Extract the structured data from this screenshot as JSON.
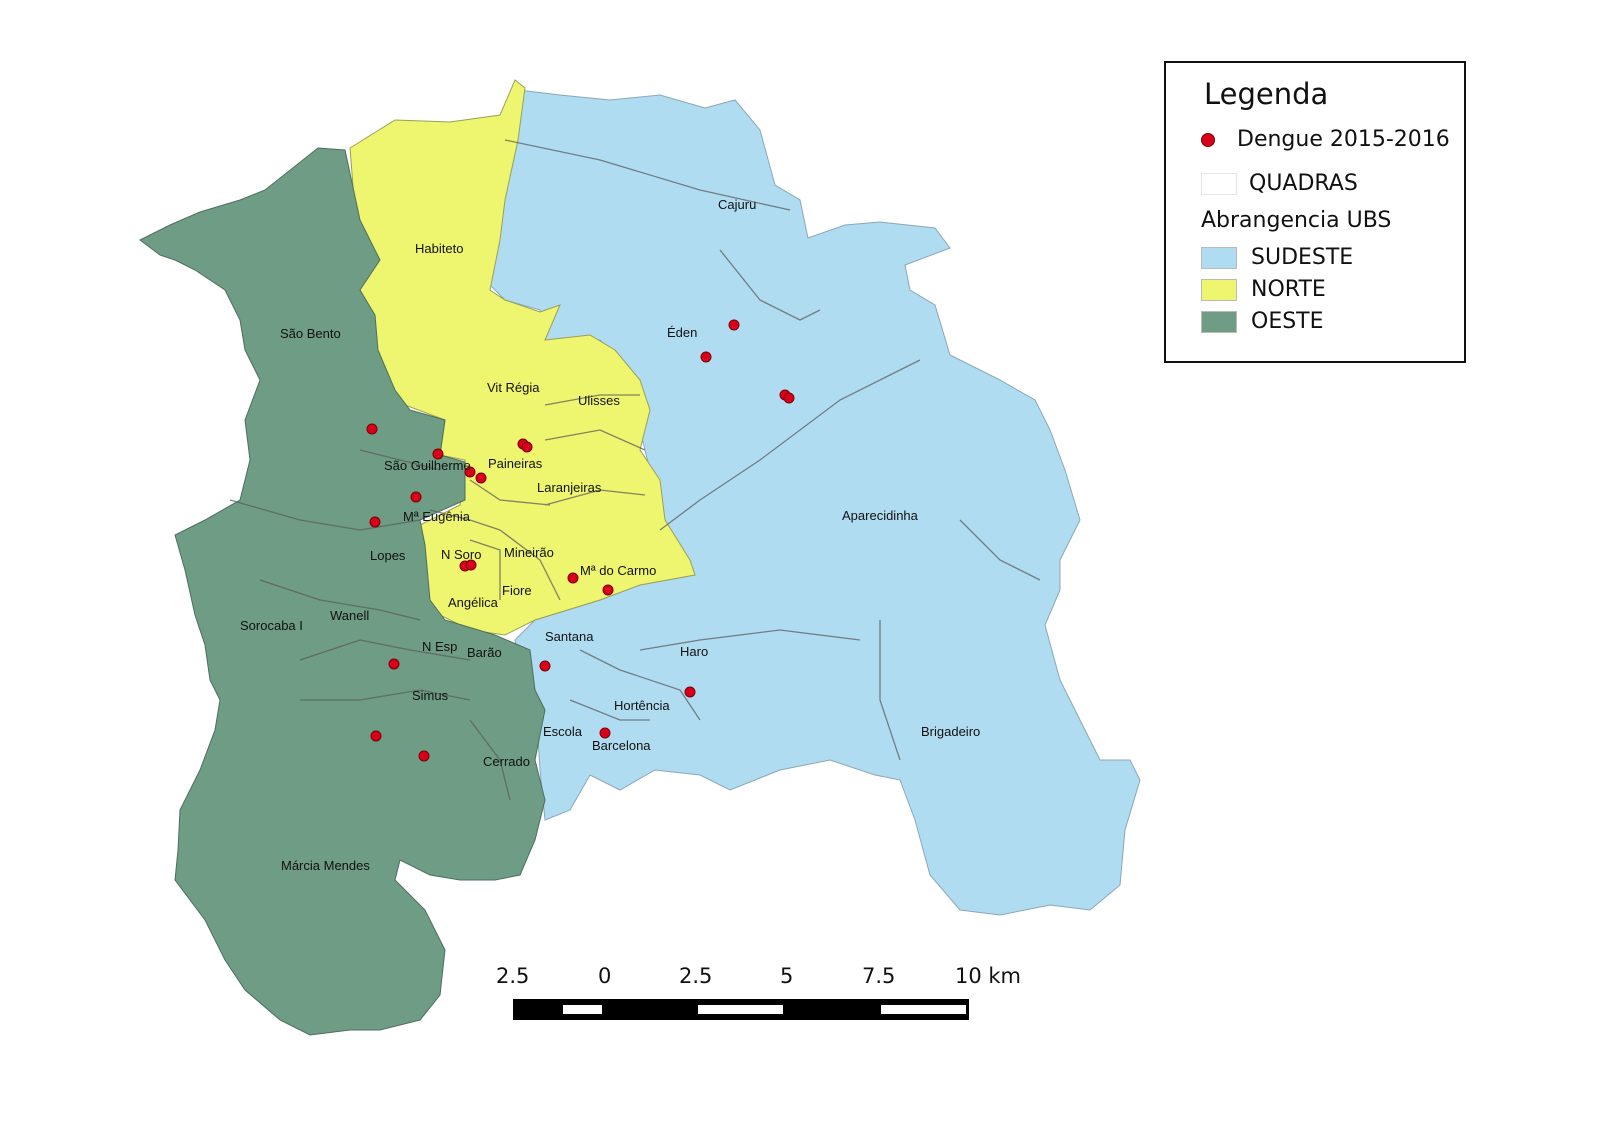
{
  "legend": {
    "title": "Legenda",
    "points_label": "Dengue 2015-2016",
    "quadras_label": "QUADRAS",
    "group_label": "Abrangencia  UBS",
    "regions": [
      {
        "name": "SUDESTE",
        "color": "#b0dcf2"
      },
      {
        "name": "NORTE",
        "color": "#eef56e"
      },
      {
        "name": "OESTE",
        "color": "#6e9c84"
      }
    ],
    "point_color": "#d9001b"
  },
  "places": [
    "Cajuru",
    "Habiteto",
    "São Bento",
    "Éden",
    "Vit Régia",
    "Ulisses",
    "Paineiras",
    "São Guilherme",
    "Laranjeiras",
    "Mª Eugênia",
    "Aparecidinha",
    "Lopes",
    "N Soro",
    "Mineirão",
    "Mª do  Carmo",
    "Fiore",
    "Angélica",
    "Sorocaba I",
    "Wanell",
    "Santana",
    "N Esp",
    "Barão",
    "Haro",
    "Simus",
    "Hortência",
    "Escola",
    "Barcelona",
    "Brigadeiro",
    "Cerrado",
    "Márcia Mendes"
  ],
  "scale_bar": {
    "labels": [
      "2.5",
      "0",
      "2.5",
      "5",
      "7.5",
      "10 km"
    ]
  }
}
